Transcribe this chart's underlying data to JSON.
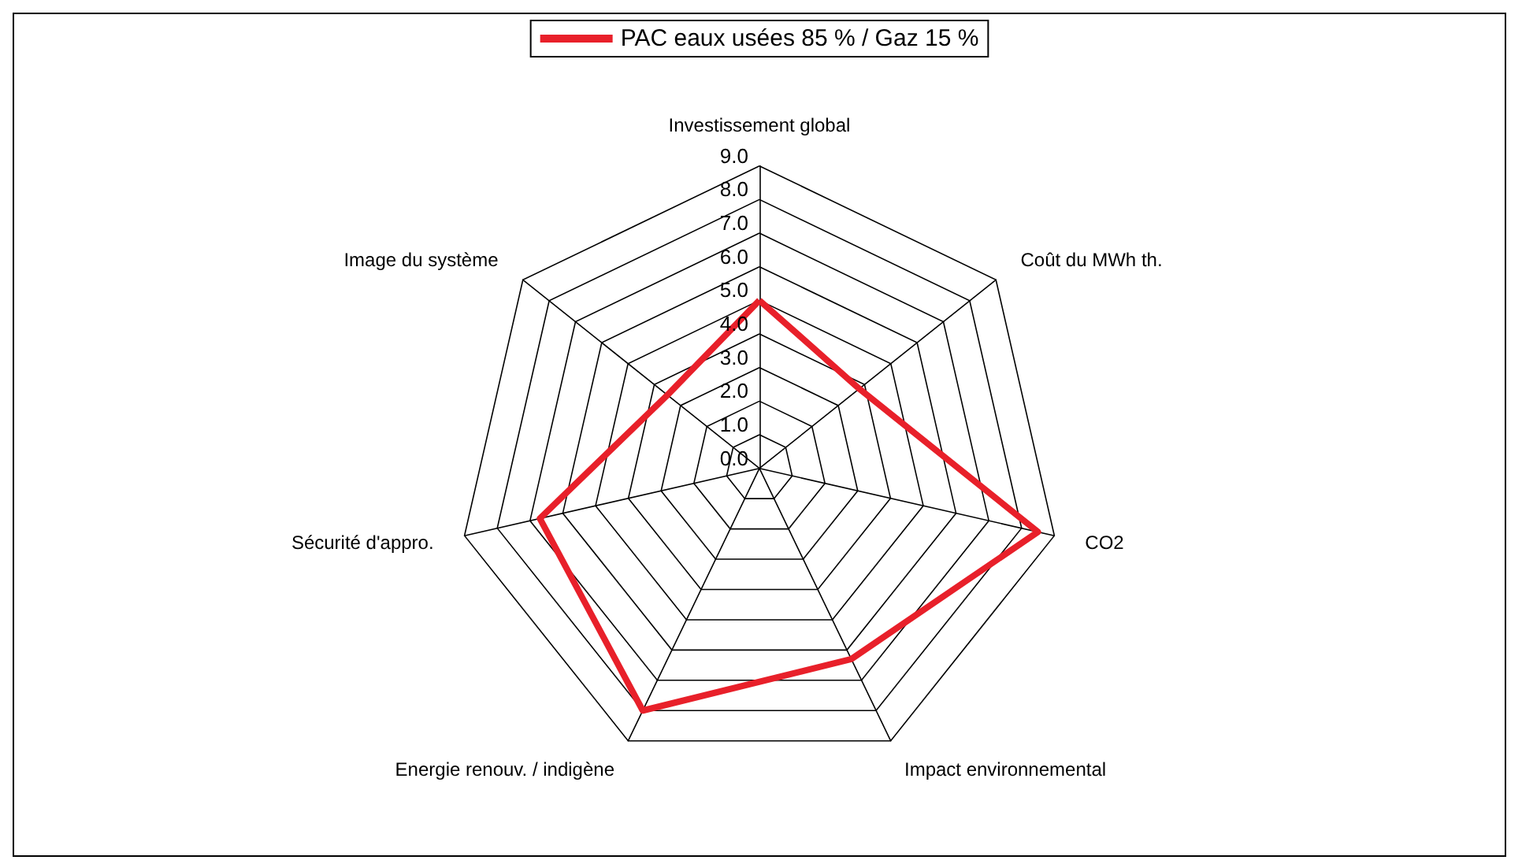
{
  "chart_data": {
    "type": "radar",
    "categories": [
      "Investissement global",
      "Coût du MWh th.",
      "CO2",
      "Impact environnemental",
      "Energie renouv. / indigène",
      "Sécurité d'appro.",
      "Image du système"
    ],
    "series": [
      {
        "name": "PAC eaux usées 85 % / Gaz 15 %",
        "color": "#e8202a",
        "values": [
          5.0,
          3.8,
          8.5,
          6.3,
          8.0,
          6.7,
          3.5
        ]
      }
    ],
    "ylim": [
      0,
      9
    ],
    "yticks": [
      {
        "value": 0,
        "label": "0.0"
      },
      {
        "value": 1,
        "label": "1.0"
      },
      {
        "value": 2,
        "label": "2.0"
      },
      {
        "value": 3,
        "label": "3.0"
      },
      {
        "value": 4,
        "label": "4.0"
      },
      {
        "value": 5,
        "label": "5.0"
      },
      {
        "value": 6,
        "label": "6.0"
      },
      {
        "value": 7,
        "label": "7.0"
      },
      {
        "value": 8,
        "label": "8.0"
      },
      {
        "value": 9,
        "label": "9.0"
      }
    ],
    "legend": "top",
    "marker": "none",
    "line_style": "solid"
  }
}
